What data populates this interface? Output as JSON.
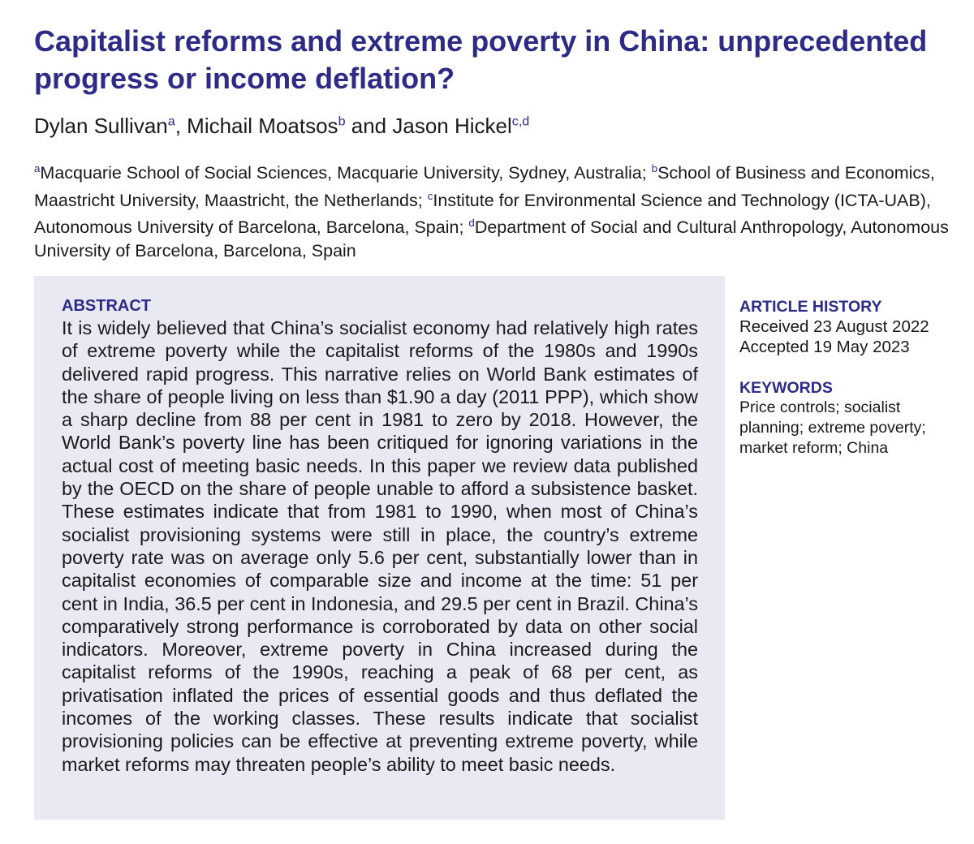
{
  "header": {
    "title": "Capitalist reforms and extreme poverty in China: unprecedented progress or income deflation?",
    "authors": [
      {
        "text": "Dylan Sullivan",
        "sup": "a"
      },
      {
        "text": ", Michail Moatsos",
        "sup": "b"
      },
      {
        "text": " and Jason Hickel",
        "sup": "c,d"
      }
    ],
    "affiliations": [
      {
        "sup": "a",
        "text": "Macquarie School of Social Sciences, Macquarie University, Sydney, Australia; "
      },
      {
        "sup": "b",
        "text": "School of Business and Economics, Maastricht University, Maastricht, the Netherlands; "
      },
      {
        "sup": "c",
        "text": "Institute for Environmental Science and Technology (ICTA-UAB), Autonomous University of Barcelona, Barcelona, Spain; "
      },
      {
        "sup": "d",
        "text": "Department of Social and Cultural Anthropology, Autonomous University of Barcelona, Barcelona, Spain"
      }
    ]
  },
  "abstract": {
    "heading": "ABSTRACT",
    "text": "It is widely believed that China’s socialist economy had relatively high rates of extreme poverty while the capitalist reforms of the 1980s and 1990s delivered rapid progress. This narrative relies on World Bank estimates of the share of people living on less than $1.90 a day (2011 PPP), which show a sharp decline from 88 per cent in 1981 to zero by 2018. However, the World Bank’s poverty line has been critiqued for ignoring variations in the actual cost of meeting basic needs. In this paper we review data published by the OECD on the share of people unable to afford a subsistence basket. These estimates indicate that from 1981 to 1990, when most of China’s socialist provisioning systems were still in place, the country’s extreme poverty rate was on average only 5.6 per cent, substantially lower than in capitalist economies of comparable size and income at the time: 51 per cent in India, 36.5 per cent in Indonesia, and 29.5 per cent in Brazil. China’s comparatively strong performance is corroborated by data on other social indicators. Moreover, extreme poverty in China increased during the capitalist reforms of the 1990s, reaching a peak of 68 per cent, as privatisation inflated the prices of essential goods and thus deflated the incomes of the working classes. These results indicate that socialist provisioning policies can be effective at preventing extreme poverty, while market reforms may threaten people’s ability to meet basic needs."
  },
  "article_history": {
    "heading": "ARTICLE HISTORY",
    "received": "Received 23 August 2022",
    "accepted": "Accepted 19 May 2023"
  },
  "keywords": {
    "heading": "KEYWORDS",
    "text": "Price controls; socialist planning; extreme poverty; market reform; China"
  }
}
